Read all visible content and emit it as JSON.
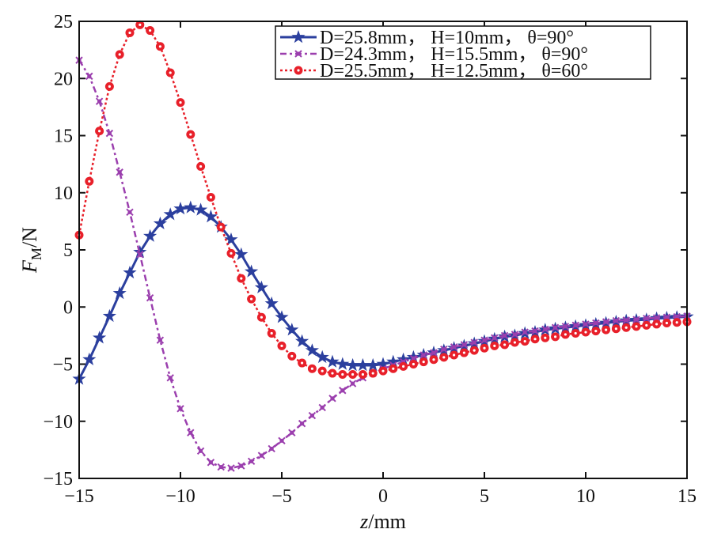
{
  "chart_data": {
    "type": "line",
    "title": "",
    "xlabel": "z/mm",
    "xlabel_var": "z",
    "xlabel_unit": "/mm",
    "ylabel": "F_M/N",
    "ylabel_var": "F",
    "ylabel_sub": "M",
    "ylabel_unit": "/N",
    "xlim": [
      -15,
      15
    ],
    "ylim": [
      -15,
      25
    ],
    "xticks": [
      -15,
      -10,
      -5,
      0,
      5,
      10,
      15
    ],
    "xtick_labels": [
      "−15",
      "−10",
      "−5",
      "0",
      "5",
      "10",
      "15"
    ],
    "yticks": [
      -15,
      -10,
      -5,
      0,
      5,
      10,
      15,
      20,
      25
    ],
    "ytick_labels": [
      "−15",
      "−10",
      "−5",
      "0",
      "5",
      "10",
      "15",
      "20",
      "25"
    ],
    "grid": false,
    "legend_position": "top-right",
    "x_step": 0.5,
    "series": [
      {
        "name": "D=25.8mm， H=10mm， θ=90°",
        "color": "#2b3f9e",
        "marker": "star",
        "linestyle": "solid",
        "values": [
          -6.3,
          -4.6,
          -2.7,
          -0.8,
          1.2,
          3.0,
          4.8,
          6.2,
          7.3,
          8.1,
          8.6,
          8.7,
          8.5,
          7.9,
          7.0,
          5.9,
          4.6,
          3.1,
          1.7,
          0.3,
          -0.9,
          -2.0,
          -3.0,
          -3.8,
          -4.4,
          -4.8,
          -5.0,
          -5.1,
          -5.1,
          -5.1,
          -5.0,
          -4.8,
          -4.6,
          -4.4,
          -4.2,
          -4.0,
          -3.8,
          -3.6,
          -3.4,
          -3.2,
          -3.0,
          -2.8,
          -2.6,
          -2.5,
          -2.3,
          -2.2,
          -2.0,
          -1.9,
          -1.8,
          -1.7,
          -1.6,
          -1.5,
          -1.4,
          -1.3,
          -1.2,
          -1.15,
          -1.1,
          -1.0,
          -0.95,
          -0.9,
          -0.85
        ]
      },
      {
        "name": "D=24.3mm， H=15.5mm， θ=90°",
        "color": "#9b3fae",
        "marker": "x",
        "linestyle": "dashdot",
        "values": [
          21.6,
          20.2,
          18.0,
          15.2,
          11.8,
          8.3,
          4.6,
          0.8,
          -2.9,
          -6.2,
          -8.9,
          -11.0,
          -12.6,
          -13.6,
          -14.0,
          -14.1,
          -13.9,
          -13.5,
          -13.0,
          -12.4,
          -11.7,
          -11.0,
          -10.2,
          -9.5,
          -8.8,
          -8.0,
          -7.3,
          -6.7,
          -6.2,
          -5.8,
          -5.4,
          -5.1,
          -4.8,
          -4.5,
          -4.2,
          -4.0,
          -3.7,
          -3.5,
          -3.3,
          -3.1,
          -2.9,
          -2.7,
          -2.5,
          -2.4,
          -2.2,
          -2.1,
          -1.95,
          -1.8,
          -1.7,
          -1.6,
          -1.5,
          -1.4,
          -1.3,
          -1.2,
          -1.15,
          -1.1,
          -1.0,
          -0.95,
          -0.9,
          -0.85,
          -0.8
        ]
      },
      {
        "name": "D=25.5mm， H=12.5mm， θ=60°",
        "color": "#e8202a",
        "marker": "circle",
        "linestyle": "dotted",
        "values": [
          6.3,
          11.0,
          15.4,
          19.3,
          22.1,
          24.0,
          24.7,
          24.2,
          22.8,
          20.5,
          17.9,
          15.1,
          12.3,
          9.6,
          7.0,
          4.7,
          2.5,
          0.7,
          -0.9,
          -2.3,
          -3.4,
          -4.3,
          -4.9,
          -5.4,
          -5.6,
          -5.8,
          -5.9,
          -5.9,
          -5.9,
          -5.8,
          -5.6,
          -5.4,
          -5.2,
          -5.0,
          -4.8,
          -4.6,
          -4.4,
          -4.2,
          -4.0,
          -3.8,
          -3.6,
          -3.4,
          -3.3,
          -3.1,
          -3.0,
          -2.8,
          -2.7,
          -2.6,
          -2.4,
          -2.3,
          -2.2,
          -2.1,
          -2.0,
          -1.9,
          -1.8,
          -1.7,
          -1.6,
          -1.5,
          -1.4,
          -1.35,
          -1.3
        ]
      }
    ]
  }
}
